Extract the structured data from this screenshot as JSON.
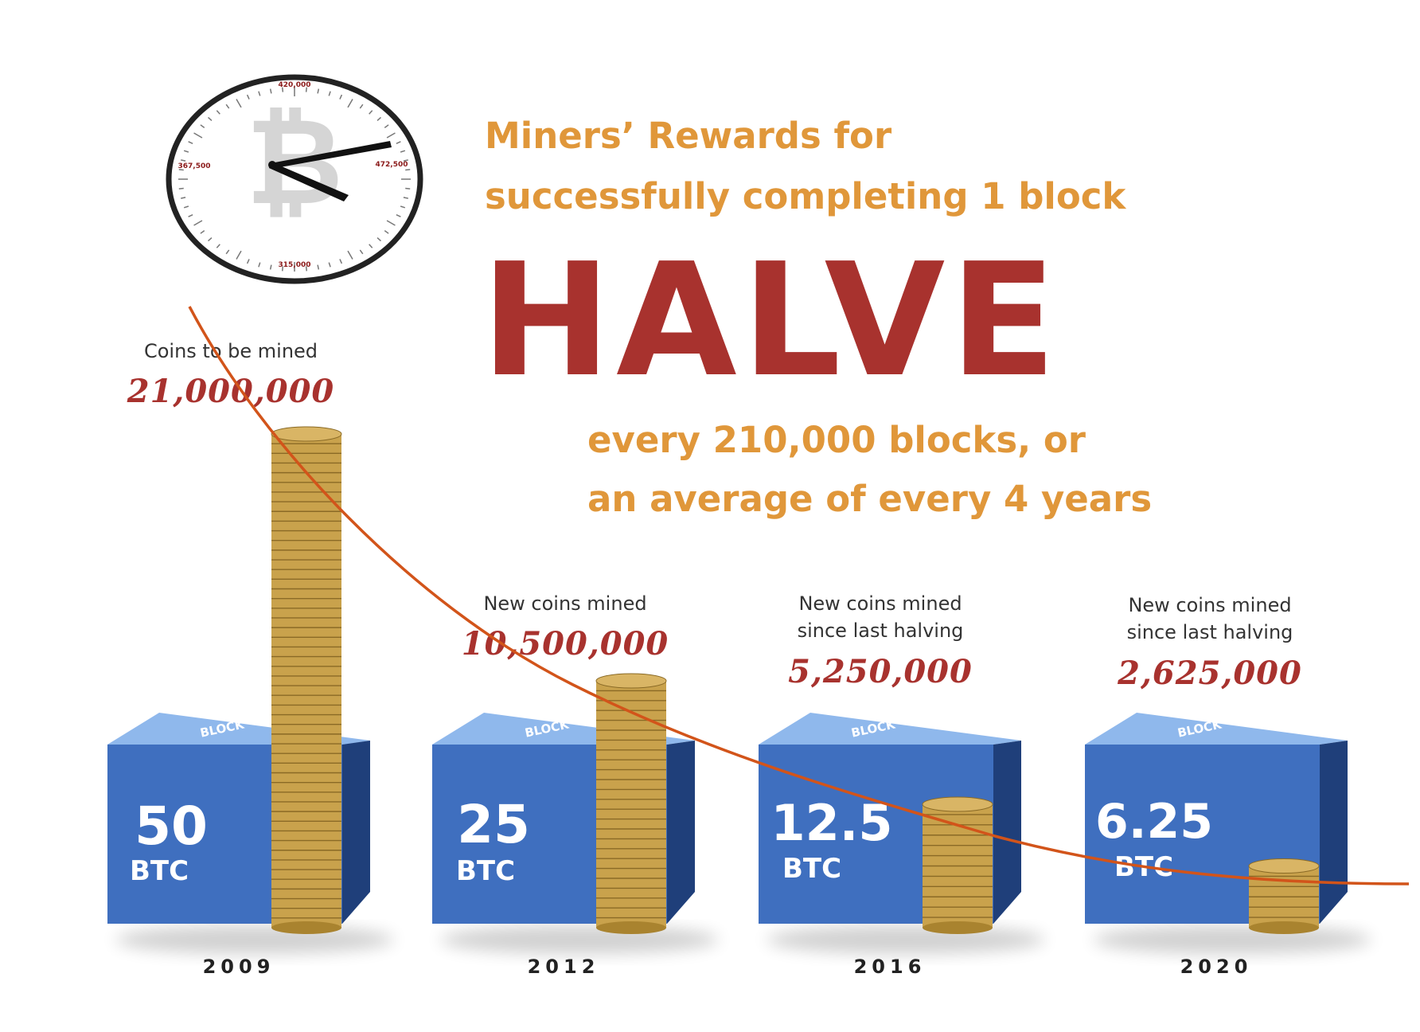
{
  "title": {
    "line1": "Miners’ Rewards for",
    "line2": "successfully completing 1 block",
    "halve": "HALVE",
    "line3": "every 210,000 blocks, or",
    "line4": "an average of every 4 years"
  },
  "clock": {
    "labels": [
      "420,000",
      "367,500",
      "315,000",
      "472,500"
    ]
  },
  "periods": [
    {
      "year": "2009",
      "reward": "50",
      "unit": "BTC",
      "block_word": "BLOCK",
      "caption1": "Coins to be mined",
      "caption2": "",
      "amount": "21,000,000",
      "coins": 21000000
    },
    {
      "year": "2012",
      "reward": "25",
      "unit": "BTC",
      "block_word": "BLOCK",
      "caption1": "New coins mined",
      "caption2": "",
      "amount": "10,500,000",
      "coins": 10500000
    },
    {
      "year": "2016",
      "reward": "12.5",
      "unit": "BTC",
      "block_word": "BLOCK",
      "caption1": "New coins mined",
      "caption2": "since last halving",
      "amount": "5,250,000",
      "coins": 5250000
    },
    {
      "year": "2020",
      "reward": "6.25",
      "unit": "BTC",
      "block_word": "BLOCK",
      "caption1": "New coins mined",
      "caption2": "since last halving",
      "amount": "2,625,000",
      "coins": 2625000
    }
  ],
  "colors": {
    "headline": "#e0973a",
    "accent_red": "#a8322e",
    "block_front": "#3f6fbf",
    "block_top": "#8fb8ec",
    "block_side": "#1f3f7a",
    "coin": "#c9a24c",
    "curve": "#d2541a"
  }
}
